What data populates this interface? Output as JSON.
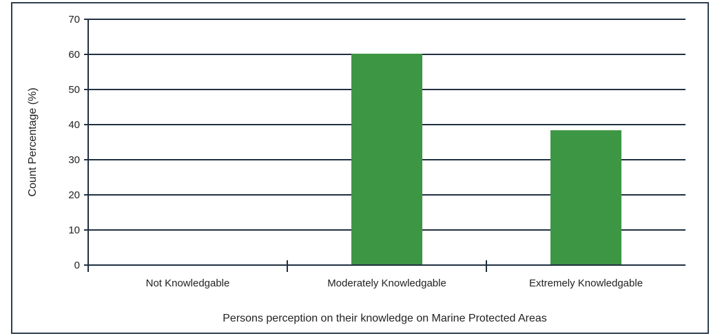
{
  "chart_data": {
    "type": "bar",
    "title": "",
    "xlabel": "Persons perception on their knowledge on Marine Protected Areas",
    "ylabel": "Count Percentage (%)",
    "categories": [
      "Not Knowledgable",
      "Moderately Knowledgable",
      "Extremely Knowledgable"
    ],
    "values": [
      0,
      60.2,
      38.4
    ],
    "ylim": [
      0,
      70
    ],
    "yticks": [
      "0",
      "10",
      "20",
      "30",
      "40",
      "50",
      "60",
      "70"
    ],
    "grid": true,
    "legend": "none",
    "colors": {
      "bar": "#3d9643",
      "grid": "#1f2f40",
      "axis": "#1f2f40",
      "frame": "#2e3e4e",
      "text": "#222222"
    }
  }
}
